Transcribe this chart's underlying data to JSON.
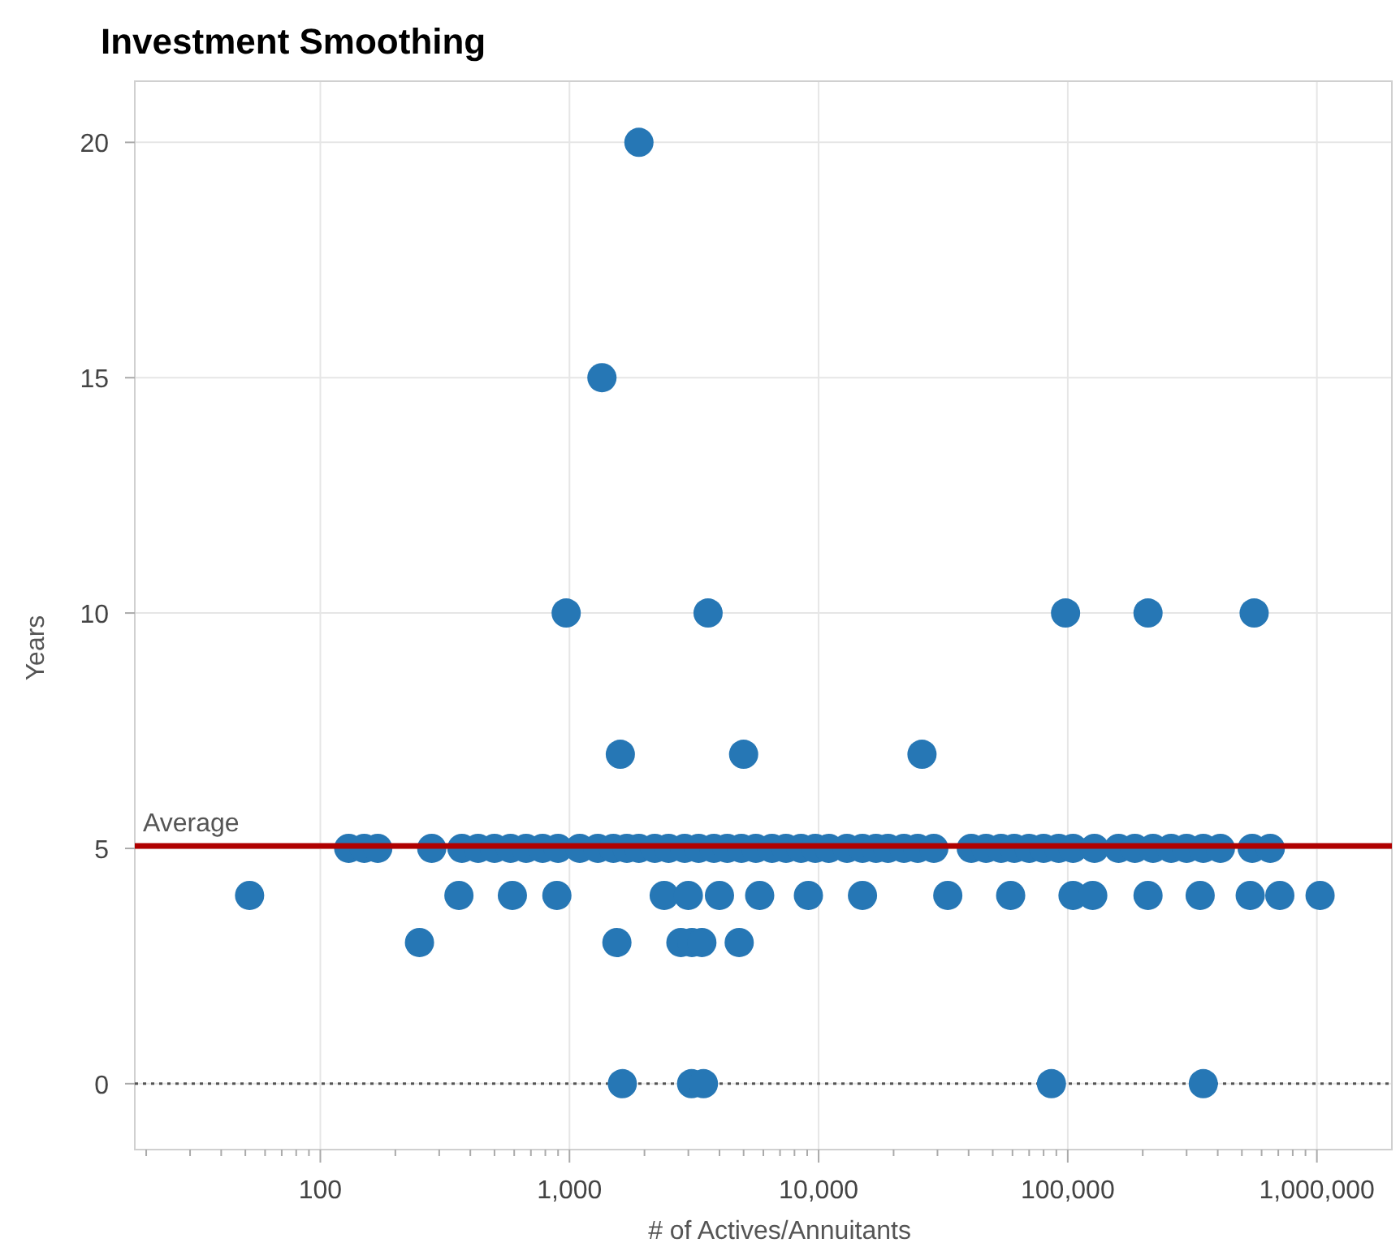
{
  "chart_data": {
    "type": "scatter",
    "title": "Investment Smoothing",
    "xlabel": "# of Actives/Annuitants",
    "ylabel": "Years",
    "log": "x",
    "grid": true,
    "marker": "circle",
    "xlim": [
      18,
      2000000
    ],
    "ylim": [
      -1.4,
      21.3
    ],
    "xticks": [
      {
        "value": 20,
        "label": null
      },
      {
        "value": 30,
        "label": null
      },
      {
        "value": 40,
        "label": null
      },
      {
        "value": 50,
        "label": null
      },
      {
        "value": 60,
        "label": null
      },
      {
        "value": 70,
        "label": null
      },
      {
        "value": 80,
        "label": null
      },
      {
        "value": 90,
        "label": null
      },
      {
        "value": 100,
        "label": "100"
      },
      {
        "value": 200,
        "label": null
      },
      {
        "value": 300,
        "label": null
      },
      {
        "value": 400,
        "label": null
      },
      {
        "value": 500,
        "label": null
      },
      {
        "value": 600,
        "label": null
      },
      {
        "value": 700,
        "label": null
      },
      {
        "value": 800,
        "label": null
      },
      {
        "value": 900,
        "label": null
      },
      {
        "value": 1000,
        "label": "1,000"
      },
      {
        "value": 2000,
        "label": null
      },
      {
        "value": 3000,
        "label": null
      },
      {
        "value": 4000,
        "label": null
      },
      {
        "value": 5000,
        "label": null
      },
      {
        "value": 6000,
        "label": null
      },
      {
        "value": 7000,
        "label": null
      },
      {
        "value": 8000,
        "label": null
      },
      {
        "value": 9000,
        "label": null
      },
      {
        "value": 10000,
        "label": "10,000"
      },
      {
        "value": 20000,
        "label": null
      },
      {
        "value": 30000,
        "label": null
      },
      {
        "value": 40000,
        "label": null
      },
      {
        "value": 50000,
        "label": null
      },
      {
        "value": 60000,
        "label": null
      },
      {
        "value": 70000,
        "label": null
      },
      {
        "value": 80000,
        "label": null
      },
      {
        "value": 90000,
        "label": null
      },
      {
        "value": 100000,
        "label": "100,000"
      },
      {
        "value": 200000,
        "label": null
      },
      {
        "value": 300000,
        "label": null
      },
      {
        "value": 400000,
        "label": null
      },
      {
        "value": 500000,
        "label": null
      },
      {
        "value": 600000,
        "label": null
      },
      {
        "value": 700000,
        "label": null
      },
      {
        "value": 800000,
        "label": null
      },
      {
        "value": 900000,
        "label": null
      },
      {
        "value": 1000000,
        "label": "1,000,000"
      }
    ],
    "yticks": [
      0,
      5,
      10,
      15,
      20
    ],
    "ref_lines": [
      {
        "axis": "y",
        "value": 5.05,
        "label": "Average",
        "color": "#b00000",
        "line_style": "solid"
      },
      {
        "axis": "y",
        "value": 0,
        "label": null,
        "color": "#555555",
        "line_style": "dotted"
      }
    ],
    "series": [
      {
        "color": "#2677b5",
        "x": [
          1900,
          1350,
          970,
          3600,
          98000,
          210000,
          560000,
          1600,
          5000,
          26000,
          250,
          1550,
          2800,
          3100,
          3400,
          4800,
          1630,
          3090,
          3450,
          86000,
          350000,
          52,
          360,
          590,
          890,
          2400,
          3000,
          4000,
          5800,
          9100,
          15000,
          33000,
          59000,
          105000,
          126000,
          210000,
          340000,
          540000,
          710000,
          1030000,
          130,
          150,
          170,
          280,
          370,
          430,
          500,
          580,
          670,
          780,
          900,
          1100,
          1300,
          1500,
          1700,
          1900,
          2200,
          2500,
          2900,
          3300,
          3800,
          4300,
          4900,
          5600,
          6500,
          7400,
          8500,
          9700,
          11000,
          13000,
          15000,
          17000,
          19000,
          22000,
          25000,
          29000,
          41000,
          47000,
          54000,
          61000,
          70000,
          80000,
          92000,
          105000,
          128000,
          160000,
          186000,
          220000,
          260000,
          300000,
          350000,
          410000,
          550000,
          650000
        ],
        "values": [
          20,
          15,
          10,
          10,
          10,
          10,
          10,
          7,
          7,
          7,
          3,
          3,
          3,
          3,
          3,
          3,
          0,
          0,
          0,
          0,
          0,
          4,
          4,
          4,
          4,
          4,
          4,
          4,
          4,
          4,
          4,
          4,
          4,
          4,
          4,
          4,
          4,
          4,
          4,
          4,
          5,
          5,
          5,
          5,
          5,
          5,
          5,
          5,
          5,
          5,
          5,
          5,
          5,
          5,
          5,
          5,
          5,
          5,
          5,
          5,
          5,
          5,
          5,
          5,
          5,
          5,
          5,
          5,
          5,
          5,
          5,
          5,
          5,
          5,
          5,
          5,
          5,
          5,
          5,
          5,
          5,
          5,
          5,
          5,
          5,
          5,
          5,
          5,
          5,
          5,
          5,
          5,
          5,
          5
        ]
      }
    ]
  }
}
